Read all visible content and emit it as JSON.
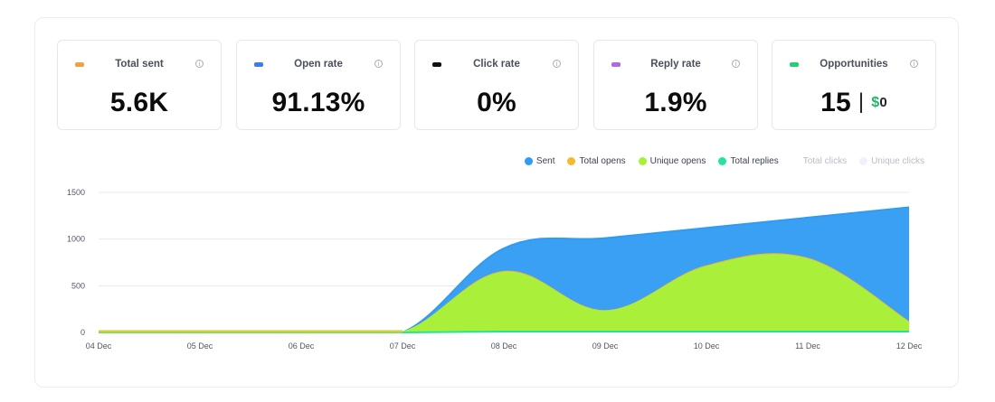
{
  "metrics": [
    {
      "label": "Total sent",
      "value": "5.6K",
      "color": "#f6a03d",
      "icon": "info-icon"
    },
    {
      "label": "Open rate",
      "value": "91.13%",
      "color": "#3b7bf4",
      "icon": "info-icon"
    },
    {
      "label": "Click rate",
      "value": "0%",
      "color": "#111111",
      "icon": "info-icon"
    },
    {
      "label": "Reply rate",
      "value": "1.9%",
      "color": "#b266e6",
      "icon": "info-icon"
    },
    {
      "label": "Opportunities",
      "value": "15",
      "money_symbol": "$",
      "money_value": "0",
      "color": "#1ed36f",
      "icon": "info-icon"
    }
  ],
  "chart_data": {
    "type": "area",
    "categories": [
      "04 Dec",
      "05 Dec",
      "06 Dec",
      "07 Dec",
      "08 Dec",
      "09 Dec",
      "10 Dec",
      "11 Dec",
      "12 Dec"
    ],
    "ylim": [
      0,
      1500
    ],
    "yticks": [
      0,
      500,
      1000,
      1500
    ],
    "grid": true,
    "legend_position": "top-right",
    "series": [
      {
        "name": "Sent",
        "color": "#2f9bf2",
        "values": [
          0,
          0,
          0,
          0,
          900,
          1010,
          1120,
          1230,
          1340
        ]
      },
      {
        "name": "Total opens",
        "color": "#f5b82e",
        "values": [
          0,
          0,
          0,
          0,
          650,
          230,
          710,
          790,
          110
        ]
      },
      {
        "name": "Unique opens",
        "color": "#a6f23a",
        "values": [
          0,
          0,
          0,
          0,
          640,
          225,
          700,
          780,
          100
        ]
      },
      {
        "name": "Total replies",
        "color": "#25e39a",
        "values": [
          0,
          0,
          0,
          0,
          10,
          10,
          10,
          10,
          10
        ]
      },
      {
        "name": "Total clicks",
        "color": "#e9eaee",
        "values": [
          0,
          0,
          0,
          0,
          0,
          0,
          0,
          0,
          0
        ],
        "hidden": true
      },
      {
        "name": "Unique clicks",
        "color": "#eef3fb",
        "values": [
          0,
          0,
          0,
          0,
          0,
          0,
          0,
          0,
          0
        ],
        "hidden": true
      }
    ]
  }
}
